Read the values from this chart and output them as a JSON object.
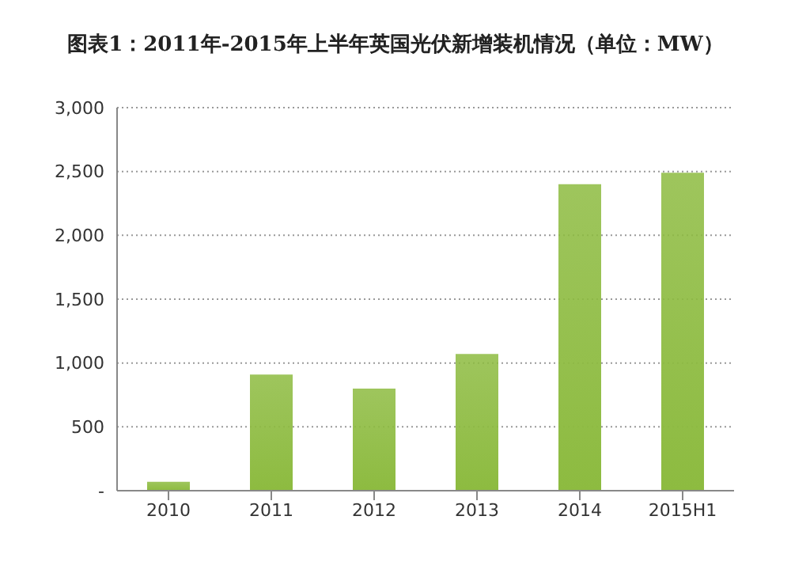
{
  "chart_data": {
    "type": "bar",
    "title": "图表1：2011年-2015年上半年英国光伏新增装机情况（单位：MW）",
    "categories": [
      "2010",
      "2011",
      "2012",
      "2013",
      "2014",
      "2015H1"
    ],
    "values": [
      70,
      910,
      800,
      1070,
      2400,
      2490
    ],
    "color": "#8dbb40",
    "ylim": [
      0,
      3000
    ],
    "yticks": [
      {
        "value": 0,
        "label": "-"
      },
      {
        "value": 500,
        "label": "500"
      },
      {
        "value": 1000,
        "label": "1,000"
      },
      {
        "value": 1500,
        "label": "1,500"
      },
      {
        "value": 2000,
        "label": "2,000"
      },
      {
        "value": 2500,
        "label": "2,500"
      },
      {
        "value": 3000,
        "label": "3,000"
      }
    ],
    "grid": "y"
  }
}
